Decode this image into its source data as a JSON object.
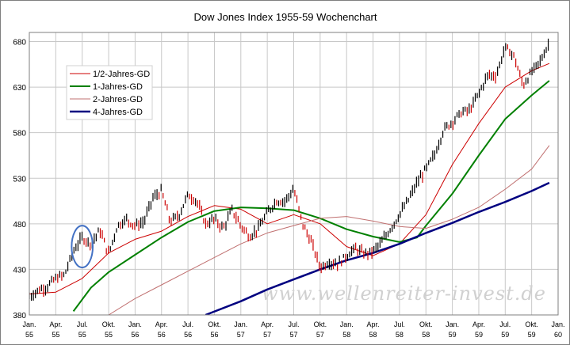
{
  "chart_data": {
    "type": "line",
    "title": "Dow Jones Index 1955-59 Wochenchart",
    "xlabel": "",
    "ylabel": "",
    "x_range": [
      "1955-01",
      "1960-01"
    ],
    "ylim": [
      380,
      690
    ],
    "yticks": [
      380,
      430,
      480,
      530,
      580,
      630,
      680
    ],
    "xtick_labels": [
      [
        "Jan.",
        "55"
      ],
      [
        "Apr.",
        "55"
      ],
      [
        "Jul.",
        "55"
      ],
      [
        "Okt.",
        "55"
      ],
      [
        "Jan.",
        "56"
      ],
      [
        "Apr.",
        "56"
      ],
      [
        "Jul.",
        "56"
      ],
      [
        "Okt.",
        "56"
      ],
      [
        "Jan.",
        "57"
      ],
      [
        "Apr.",
        "57"
      ],
      [
        "Jul.",
        "57"
      ],
      [
        "Okt.",
        "57"
      ],
      [
        "Jan.",
        "58"
      ],
      [
        "Apr.",
        "58"
      ],
      [
        "Jul.",
        "58"
      ],
      [
        "Okt.",
        "58"
      ],
      [
        "Jan.",
        "59"
      ],
      [
        "Apr.",
        "59"
      ],
      [
        "Jul.",
        "59"
      ],
      [
        "Okt.",
        "59"
      ],
      [
        "Jan.",
        "60"
      ]
    ],
    "grid": true,
    "legend_position": "top-left",
    "watermark": "www.wellenreiter-invest.de",
    "price": {
      "name": "",
      "color": "#000000",
      "up_color": "#000000",
      "down_color": "#cc0000",
      "points": [
        [
          "1955-01",
          400
        ],
        [
          "1955-02",
          407
        ],
        [
          "1955-03",
          411
        ],
        [
          "1955-04",
          420
        ],
        [
          "1955-05",
          424
        ],
        [
          "1955-06",
          450
        ],
        [
          "1955-07",
          465
        ],
        [
          "1955-08",
          458
        ],
        [
          "1955-09",
          473
        ],
        [
          "1955-10",
          447
        ],
        [
          "1955-11",
          478
        ],
        [
          "1955-12",
          485
        ],
        [
          "1956-01",
          478
        ],
        [
          "1956-02",
          482
        ],
        [
          "1956-03",
          508
        ],
        [
          "1956-04",
          516
        ],
        [
          "1956-05",
          482
        ],
        [
          "1956-06",
          490
        ],
        [
          "1956-07",
          512
        ],
        [
          "1956-08",
          505
        ],
        [
          "1956-09",
          480
        ],
        [
          "1956-10",
          485
        ],
        [
          "1956-11",
          475
        ],
        [
          "1956-12",
          495
        ],
        [
          "1957-01",
          478
        ],
        [
          "1957-02",
          466
        ],
        [
          "1957-03",
          475
        ],
        [
          "1957-04",
          492
        ],
        [
          "1957-05",
          505
        ],
        [
          "1957-06",
          505
        ],
        [
          "1957-07",
          518
        ],
        [
          "1957-08",
          480
        ],
        [
          "1957-09",
          460
        ],
        [
          "1957-10",
          432
        ],
        [
          "1957-11",
          438
        ],
        [
          "1957-12",
          436
        ],
        [
          "1958-01",
          445
        ],
        [
          "1958-02",
          453
        ],
        [
          "1958-03",
          447
        ],
        [
          "1958-04",
          450
        ],
        [
          "1958-05",
          460
        ],
        [
          "1958-06",
          475
        ],
        [
          "1958-07",
          490
        ],
        [
          "1958-08",
          506
        ],
        [
          "1958-09",
          525
        ],
        [
          "1958-10",
          540
        ],
        [
          "1958-11",
          556
        ],
        [
          "1958-12",
          583
        ],
        [
          "1959-01",
          592
        ],
        [
          "1959-02",
          602
        ],
        [
          "1959-03",
          605
        ],
        [
          "1959-04",
          623
        ],
        [
          "1959-05",
          643
        ],
        [
          "1959-06",
          643
        ],
        [
          "1959-07",
          674
        ],
        [
          "1959-08",
          664
        ],
        [
          "1959-09",
          632
        ],
        [
          "1959-10",
          646
        ],
        [
          "1959-11",
          659
        ],
        [
          "1959-12",
          679
        ]
      ]
    },
    "series": [
      {
        "name": "1/2-Jahres-GD",
        "color": "#cc0000",
        "width": 1,
        "points": [
          [
            "1955-01",
            403
          ],
          [
            "1955-04",
            405
          ],
          [
            "1955-07",
            420
          ],
          [
            "1955-10",
            448
          ],
          [
            "1956-01",
            463
          ],
          [
            "1956-04",
            472
          ],
          [
            "1956-07",
            488
          ],
          [
            "1956-10",
            500
          ],
          [
            "1957-01",
            496
          ],
          [
            "1957-04",
            480
          ],
          [
            "1957-07",
            490
          ],
          [
            "1957-10",
            480
          ],
          [
            "1958-01",
            455
          ],
          [
            "1958-04",
            445
          ],
          [
            "1958-07",
            458
          ],
          [
            "1958-10",
            490
          ],
          [
            "1959-01",
            545
          ],
          [
            "1959-04",
            590
          ],
          [
            "1959-07",
            630
          ],
          [
            "1959-10",
            648
          ],
          [
            "1959-12",
            656
          ]
        ]
      },
      {
        "name": "1-Jahres-GD",
        "color": "#008000",
        "width": 2,
        "points": [
          [
            "1955-06",
            384
          ],
          [
            "1955-08",
            410
          ],
          [
            "1955-10",
            427
          ],
          [
            "1956-01",
            446
          ],
          [
            "1956-04",
            465
          ],
          [
            "1956-07",
            482
          ],
          [
            "1956-10",
            494
          ],
          [
            "1957-01",
            498
          ],
          [
            "1957-04",
            497
          ],
          [
            "1957-07",
            495
          ],
          [
            "1957-10",
            486
          ],
          [
            "1958-01",
            474
          ],
          [
            "1958-04",
            466
          ],
          [
            "1958-07",
            460
          ],
          [
            "1958-09",
            465
          ],
          [
            "1958-10",
            478
          ],
          [
            "1959-01",
            513
          ],
          [
            "1959-04",
            555
          ],
          [
            "1959-07",
            595
          ],
          [
            "1959-10",
            621
          ],
          [
            "1959-12",
            637
          ]
        ]
      },
      {
        "name": "2-Jahres-GD",
        "color": "#c07070",
        "width": 1,
        "points": [
          [
            "1955-10",
            380
          ],
          [
            "1956-01",
            398
          ],
          [
            "1956-04",
            413
          ],
          [
            "1956-07",
            428
          ],
          [
            "1956-10",
            443
          ],
          [
            "1957-01",
            458
          ],
          [
            "1957-04",
            470
          ],
          [
            "1957-07",
            478
          ],
          [
            "1957-10",
            486
          ],
          [
            "1958-01",
            488
          ],
          [
            "1958-04",
            483
          ],
          [
            "1958-07",
            477
          ],
          [
            "1958-10",
            475
          ],
          [
            "1959-01",
            485
          ],
          [
            "1959-04",
            498
          ],
          [
            "1959-07",
            518
          ],
          [
            "1959-10",
            540
          ],
          [
            "1959-12",
            566
          ]
        ]
      },
      {
        "name": "4-Jahres-GD",
        "color": "#000080",
        "width": 2.5,
        "points": [
          [
            "1956-09",
            380
          ],
          [
            "1957-01",
            395
          ],
          [
            "1957-04",
            408
          ],
          [
            "1957-07",
            419
          ],
          [
            "1957-10",
            430
          ],
          [
            "1958-01",
            440
          ],
          [
            "1958-04",
            448
          ],
          [
            "1958-07",
            458
          ],
          [
            "1958-10",
            470
          ],
          [
            "1959-01",
            481
          ],
          [
            "1959-04",
            493
          ],
          [
            "1959-07",
            504
          ],
          [
            "1959-10",
            516
          ],
          [
            "1959-12",
            525
          ]
        ]
      }
    ],
    "annotations": [
      {
        "type": "ellipse",
        "color": "#4472c4",
        "center": [
          "1955-07",
          455
        ],
        "radius_x_months": 1.2,
        "radius_y": 23
      }
    ]
  }
}
